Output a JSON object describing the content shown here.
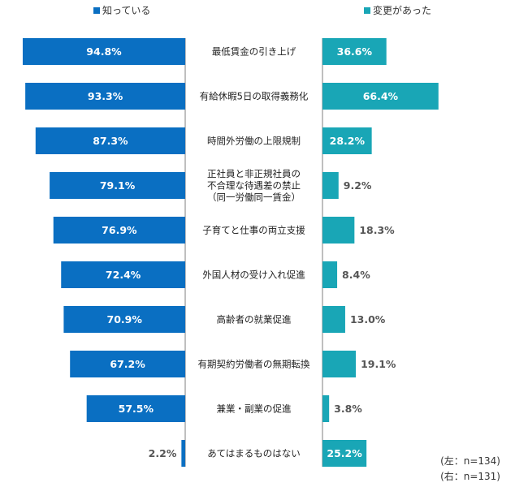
{
  "legend": {
    "left_label": "知っている",
    "right_label": "変更があった"
  },
  "colors": {
    "left": "#0a6fc2",
    "right": "#19a6b6",
    "value_on_bar": "#ffffff",
    "value_off_bar": "#555555",
    "category_text": "#222222",
    "divider": "#7f7f7f"
  },
  "notes": {
    "left": "(左：n=134)",
    "right": "(右：n=131)"
  },
  "chart_data": {
    "type": "bar",
    "orientation": "horizontal-butterfly",
    "categories": [
      "最低賃金の引き上げ",
      "有給休暇5日の取得義務化",
      "時間外労働の上限規制",
      "正社員と非正規社員の\n不合理な待遇差の禁止\n（同一労働同一賃金）",
      "子育てと仕事の両立支援",
      "外国人材の受け入れ促進",
      "高齢者の就業促進",
      "有期契約労働者の無期転換",
      "兼業・副業の促進",
      "あてはまるものはない"
    ],
    "series": [
      {
        "name": "知っている",
        "side": "left",
        "values": [
          94.8,
          93.3,
          87.3,
          79.1,
          76.9,
          72.4,
          70.9,
          67.2,
          57.5,
          2.2
        ],
        "labels": [
          "94.8%",
          "93.3%",
          "87.3%",
          "79.1%",
          "76.9%",
          "72.4%",
          "70.9%",
          "67.2%",
          "57.5%",
          "2.2%"
        ]
      },
      {
        "name": "変更があった",
        "side": "right",
        "values": [
          36.6,
          66.4,
          28.2,
          9.2,
          18.3,
          8.4,
          13.0,
          19.1,
          3.8,
          25.2
        ],
        "labels": [
          "36.6%",
          "66.4%",
          "28.2%",
          "9.2%",
          "18.3%",
          "8.4%",
          "13.0%",
          "19.1%",
          "3.8%",
          "25.2%"
        ]
      }
    ],
    "xlim": [
      0,
      100
    ],
    "grid": false,
    "legend_position": "top"
  }
}
